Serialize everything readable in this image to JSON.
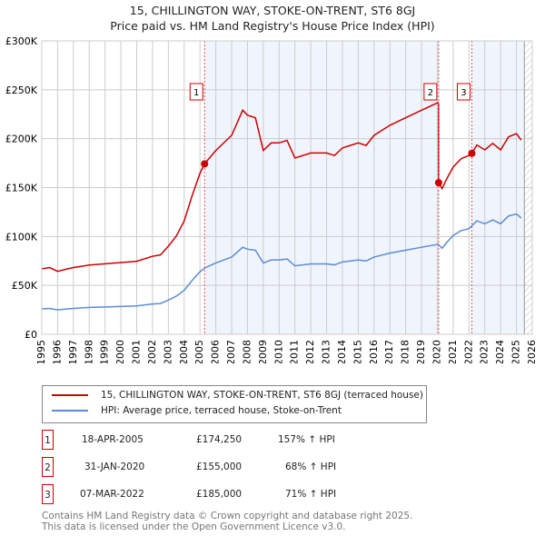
{
  "title": "15, CHILLINGTON WAY, STOKE-ON-TRENT, ST6 8GJ",
  "subtitle": "Price paid vs. HM Land Registry's House Price Index (HPI)",
  "chart_data": {
    "type": "line",
    "xlim": [
      1995,
      2026
    ],
    "ylim": [
      0,
      300000
    ],
    "yticks": [
      0,
      50000,
      100000,
      150000,
      200000,
      250000,
      300000
    ],
    "ytick_labels": [
      "£0",
      "£50K",
      "£100K",
      "£150K",
      "£200K",
      "£250K",
      "£300K"
    ],
    "xticks": [
      "1995",
      "1996",
      "1997",
      "1998",
      "1999",
      "2000",
      "2001",
      "2002",
      "2003",
      "2004",
      "2005",
      "2006",
      "2007",
      "2008",
      "2009",
      "2010",
      "2011",
      "2012",
      "2013",
      "2014",
      "2015",
      "2016",
      "2017",
      "2018",
      "2019",
      "2020",
      "2021",
      "2022",
      "2023",
      "2024",
      "2025",
      "2026"
    ],
    "hatch_from": 2025.5,
    "series": [
      {
        "name": "15, CHILLINGTON WAY, STOKE-ON-TRENT, ST6 8GJ (terraced house)",
        "color": "#cc0000",
        "derived": "hpi scaled to each sale"
      },
      {
        "name": "HPI: Average price, terraced house, Stoke-on-Trent",
        "color": "#5b8dd6",
        "x": [
          1995,
          1995.5,
          1996,
          1996.5,
          1997,
          1998,
          1999,
          2000,
          2001,
          2002,
          2002.5,
          2003,
          2003.5,
          2004,
          2004.5,
          2005,
          2005.3,
          2006,
          2007,
          2007.7,
          2008,
          2008.5,
          2009,
          2009.5,
          2010,
          2010.5,
          2011,
          2012,
          2013,
          2013.5,
          2014,
          2015,
          2015.5,
          2016,
          2017,
          2018,
          2019,
          2020.05,
          2020.3,
          2020.6,
          2021,
          2021.5,
          2022,
          2022.5,
          2023,
          2023.5,
          2024,
          2024.5,
          2025,
          2025.3
        ],
        "y": [
          26000,
          26500,
          25000,
          25800,
          26500,
          27500,
          28000,
          28500,
          29000,
          31000,
          31500,
          35000,
          39000,
          45000,
          55000,
          64000,
          67800,
          73000,
          79000,
          89000,
          87000,
          86000,
          73000,
          76000,
          76000,
          77000,
          70000,
          72000,
          72000,
          71000,
          74000,
          76000,
          75000,
          79000,
          83000,
          86000,
          89000,
          92000,
          88000,
          94000,
          101000,
          106000,
          108000,
          116000,
          113000,
          117000,
          113000,
          121000,
          123000,
          119000
        ]
      }
    ],
    "sales": [
      {
        "label": "1",
        "x": 2005.29,
        "date": "18-APR-2005",
        "price": "£174,250",
        "value": 174250,
        "hpi": "157% ↑ HPI"
      },
      {
        "label": "2",
        "x": 2020.08,
        "date": "31-JAN-2020",
        "price": "£155,000",
        "value": 155000,
        "hpi": "68% ↑ HPI"
      },
      {
        "label": "3",
        "x": 2022.18,
        "date": "07-MAR-2022",
        "price": "£185,000",
        "value": 185000,
        "hpi": "71% ↑ HPI"
      }
    ]
  },
  "footer1": "Contains HM Land Registry data © Crown copyright and database right 2025.",
  "footer2": "This data is licensed under the Open Government Licence v3.0."
}
